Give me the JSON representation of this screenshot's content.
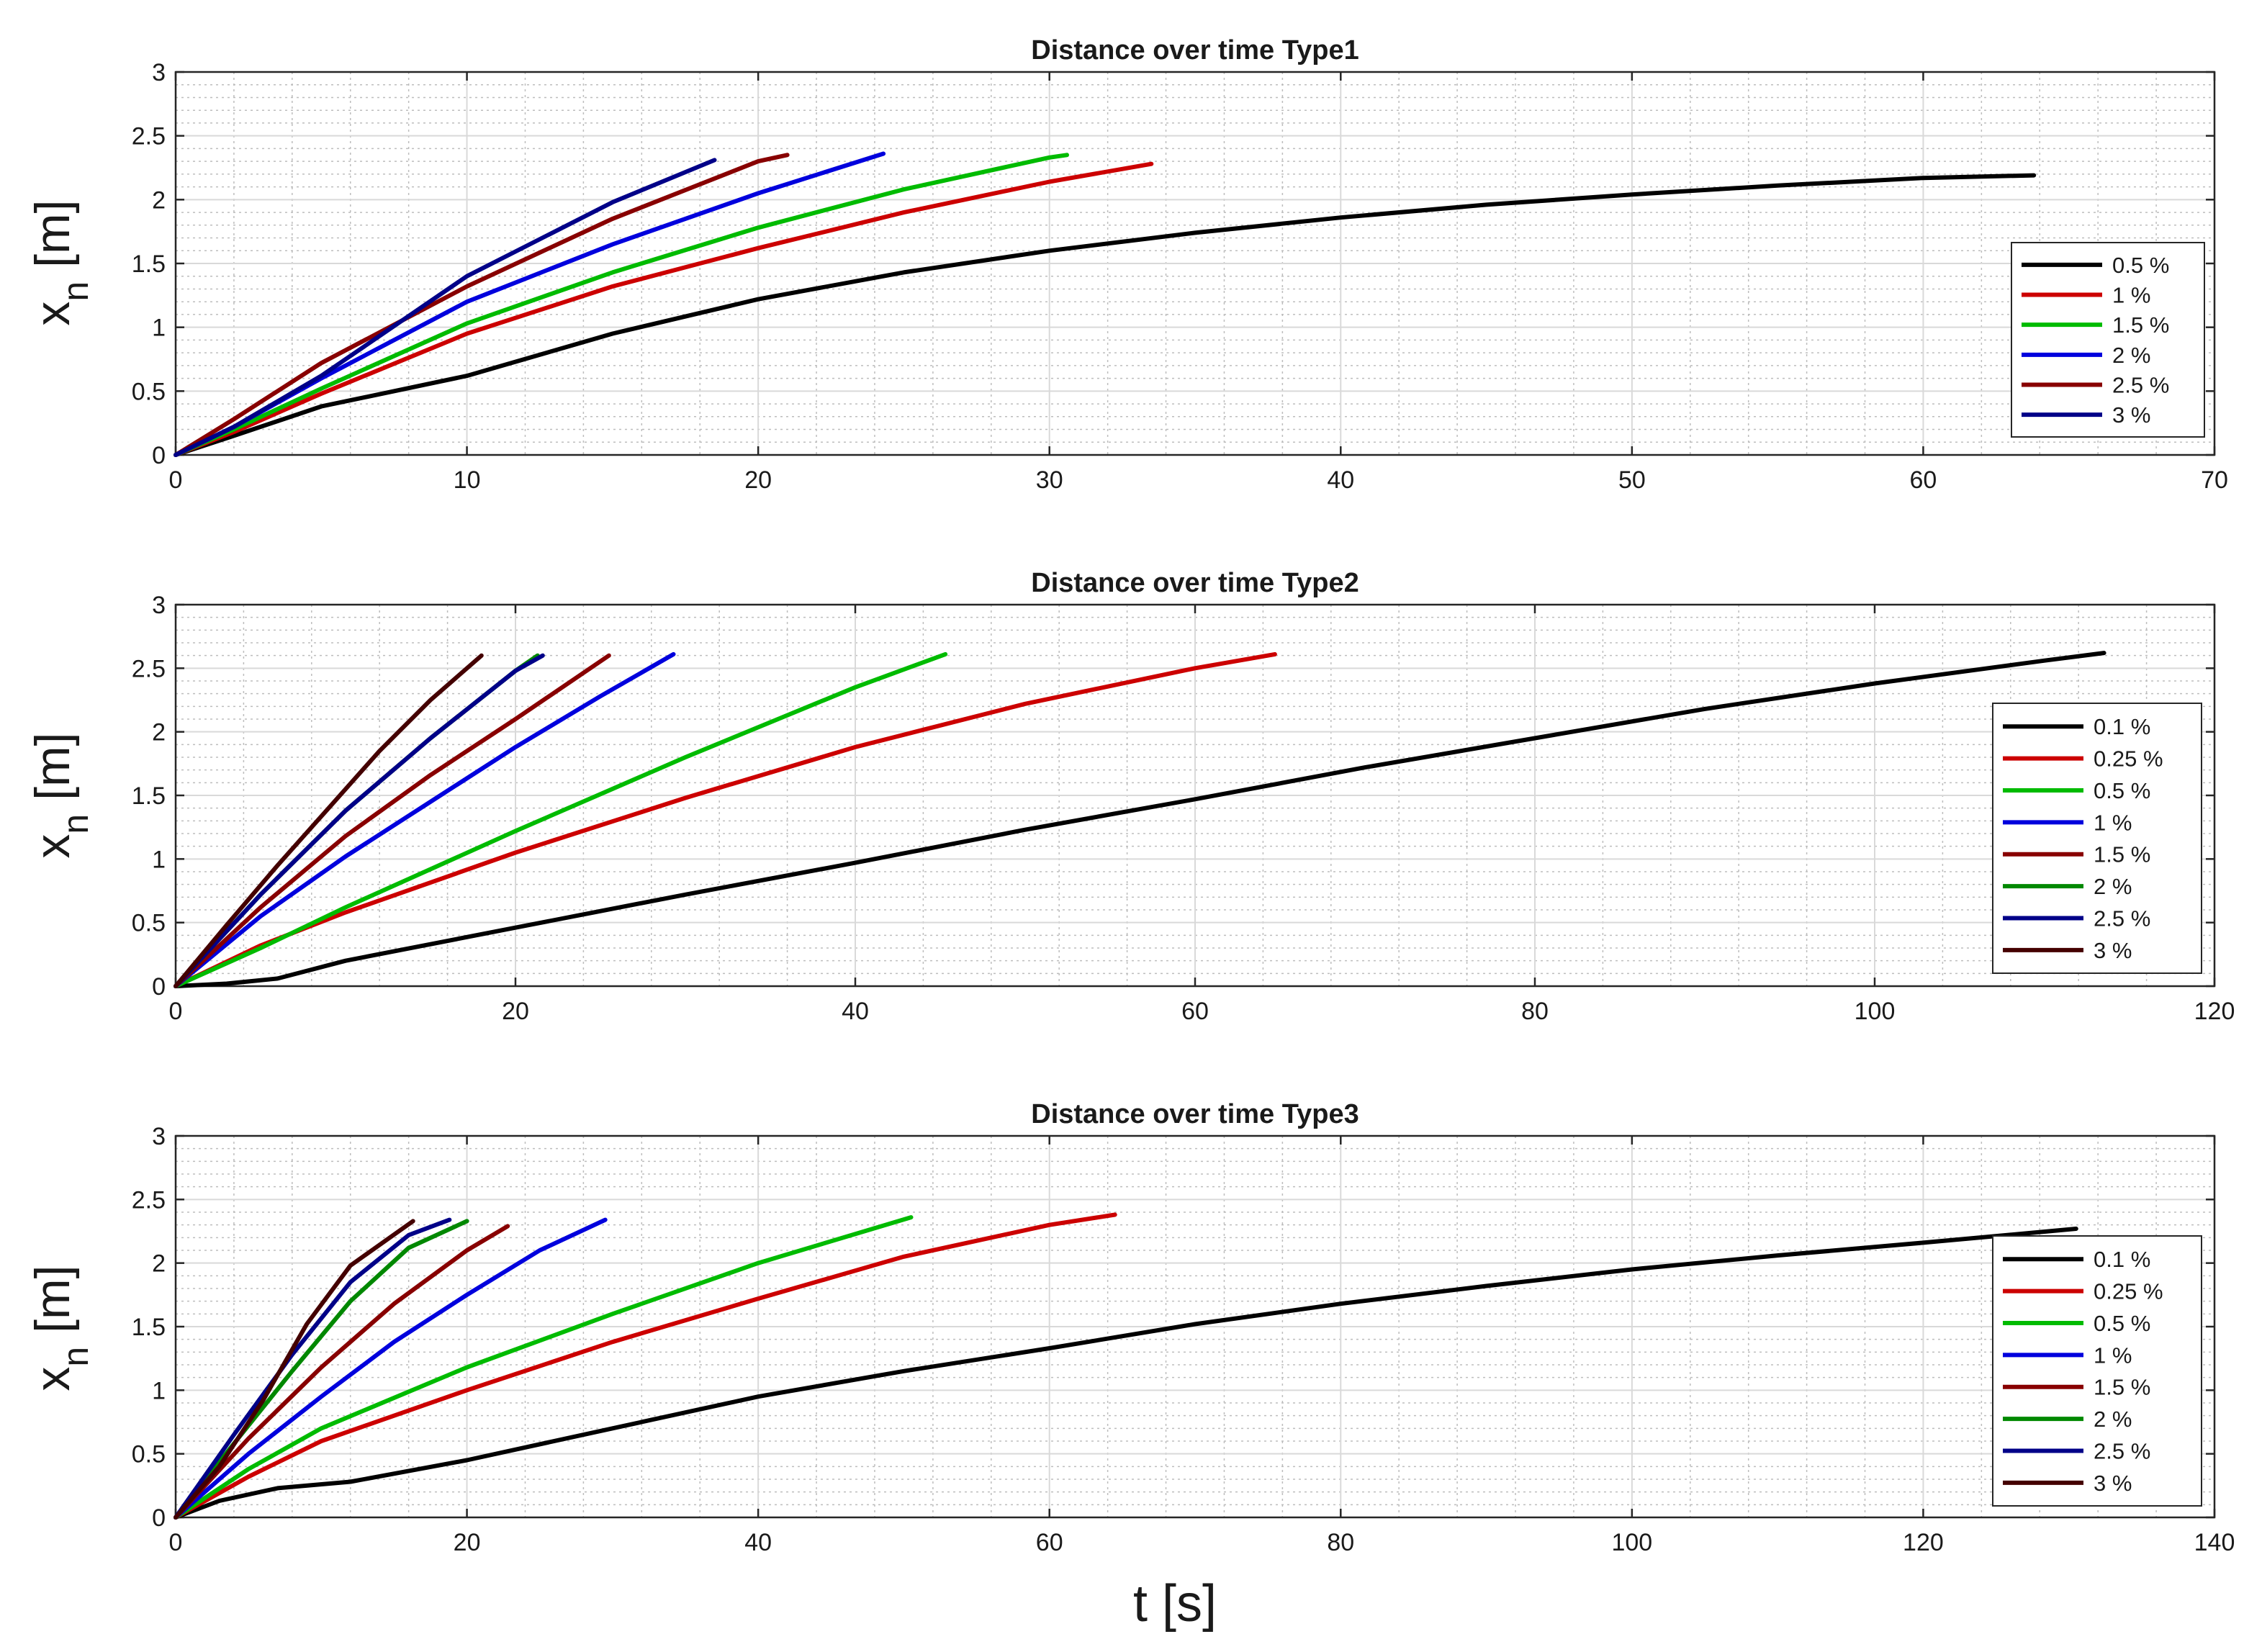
{
  "figure": {
    "xlabel": "t [s]",
    "ylabel_main": "x",
    "ylabel_sub": "n",
    "ylabel_unit": "[m]"
  },
  "chart_data": [
    {
      "type": "line",
      "title": "Distance over time Type1",
      "xlim": [
        0,
        70
      ],
      "ylim": [
        0,
        3
      ],
      "xticks": [
        0,
        10,
        20,
        30,
        40,
        50,
        60,
        70
      ],
      "yticks": [
        0,
        0.5,
        1,
        1.5,
        2,
        2.5,
        3
      ],
      "xtick_labels": [
        "0",
        "10",
        "20",
        "30",
        "40",
        "50",
        "60",
        "70"
      ],
      "ytick_labels": [
        "0",
        "0.5",
        "1",
        "1.5",
        "2",
        "2.5",
        "3"
      ],
      "grid": true,
      "legend_position": "right-middle",
      "series": [
        {
          "name": "0.5 %",
          "color": "#000000",
          "x": [
            0,
            2,
            5,
            10,
            15,
            20,
            25,
            30,
            35,
            40,
            45,
            50,
            55,
            60,
            63.8
          ],
          "y": [
            0,
            0.15,
            0.38,
            0.62,
            0.95,
            1.22,
            1.43,
            1.6,
            1.74,
            1.86,
            1.96,
            2.04,
            2.11,
            2.17,
            2.19
          ]
        },
        {
          "name": "1 %",
          "color": "#cc0000",
          "x": [
            0,
            2,
            5,
            10,
            15,
            20,
            25,
            30,
            33.5
          ],
          "y": [
            0,
            0.18,
            0.48,
            0.95,
            1.32,
            1.62,
            1.9,
            2.14,
            2.28
          ]
        },
        {
          "name": "1.5 %",
          "color": "#00bb00",
          "x": [
            0,
            2,
            5,
            10,
            15,
            20,
            25,
            30,
            30.6
          ],
          "y": [
            0,
            0.2,
            0.52,
            1.03,
            1.43,
            1.78,
            2.08,
            2.33,
            2.35
          ]
        },
        {
          "name": "2 %",
          "color": "#0000dd",
          "x": [
            0,
            2,
            5,
            10,
            15,
            20,
            24.3
          ],
          "y": [
            0,
            0.22,
            0.6,
            1.2,
            1.65,
            2.05,
            2.36
          ]
        },
        {
          "name": "2.5 %",
          "color": "#880000",
          "x": [
            0,
            2,
            5,
            10,
            15,
            20,
            21
          ],
          "y": [
            0,
            0.28,
            0.72,
            1.32,
            1.85,
            2.3,
            2.35
          ]
        },
        {
          "name": "3 %",
          "color": "#000088",
          "x": [
            0,
            2,
            5,
            10,
            15,
            18.5
          ],
          "y": [
            0,
            0.22,
            0.62,
            1.4,
            1.98,
            2.31
          ]
        }
      ]
    },
    {
      "type": "line",
      "title": "Distance over time Type2",
      "xlim": [
        0,
        120
      ],
      "ylim": [
        0,
        3
      ],
      "xticks": [
        0,
        20,
        40,
        60,
        80,
        100,
        120
      ],
      "yticks": [
        0,
        0.5,
        1,
        1.5,
        2,
        2.5,
        3
      ],
      "xtick_labels": [
        "0",
        "20",
        "40",
        "60",
        "80",
        "100",
        "120"
      ],
      "ytick_labels": [
        "0",
        "0.5",
        "1",
        "1.5",
        "2",
        "2.5",
        "3"
      ],
      "grid": true,
      "legend_position": "right-middle",
      "series": [
        {
          "name": "0.1 %",
          "color": "#000000",
          "x": [
            0,
            3,
            6,
            10,
            20,
            30,
            40,
            50,
            60,
            70,
            80,
            90,
            100,
            110,
            113.5
          ],
          "y": [
            0,
            0.02,
            0.06,
            0.2,
            0.46,
            0.72,
            0.97,
            1.23,
            1.47,
            1.72,
            1.95,
            2.18,
            2.38,
            2.56,
            2.62
          ]
        },
        {
          "name": "0.25 %",
          "color": "#cc0000",
          "x": [
            0,
            5,
            10,
            20,
            30,
            40,
            50,
            60,
            64.7
          ],
          "y": [
            0,
            0.32,
            0.58,
            1.05,
            1.48,
            1.88,
            2.22,
            2.5,
            2.61
          ]
        },
        {
          "name": "0.5 %",
          "color": "#00bb00",
          "x": [
            0,
            5,
            10,
            20,
            30,
            40,
            45.3
          ],
          "y": [
            0,
            0.3,
            0.62,
            1.22,
            1.8,
            2.35,
            2.61
          ]
        },
        {
          "name": "1 %",
          "color": "#0000dd",
          "x": [
            0,
            5,
            10,
            15,
            20,
            25,
            29.3
          ],
          "y": [
            0,
            0.55,
            1.02,
            1.45,
            1.88,
            2.28,
            2.61
          ]
        },
        {
          "name": "1.5 %",
          "color": "#880000",
          "x": [
            0,
            5,
            10,
            15,
            20,
            25.5
          ],
          "y": [
            0,
            0.62,
            1.18,
            1.66,
            2.1,
            2.6
          ]
        },
        {
          "name": "2 %",
          "color": "#008800",
          "x": [
            0,
            5,
            10,
            15,
            20,
            21.3
          ],
          "y": [
            0,
            0.72,
            1.38,
            1.95,
            2.48,
            2.6
          ]
        },
        {
          "name": "2.5 %",
          "color": "#000088",
          "x": [
            0,
            5,
            10,
            15,
            20,
            21.6
          ],
          "y": [
            0,
            0.72,
            1.38,
            1.95,
            2.48,
            2.6
          ]
        },
        {
          "name": "3 %",
          "color": "#440000",
          "x": [
            0,
            3,
            6,
            9,
            12,
            15,
            18
          ],
          "y": [
            0,
            0.48,
            0.95,
            1.4,
            1.85,
            2.25,
            2.6
          ]
        }
      ]
    },
    {
      "type": "line",
      "title": "Distance over time Type3",
      "xlim": [
        0,
        140
      ],
      "ylim": [
        0,
        3
      ],
      "xticks": [
        0,
        20,
        40,
        60,
        80,
        100,
        120,
        140
      ],
      "yticks": [
        0,
        0.5,
        1,
        1.5,
        2,
        2.5,
        3
      ],
      "xtick_labels": [
        "0",
        "20",
        "40",
        "60",
        "80",
        "100",
        "120",
        "140"
      ],
      "ytick_labels": [
        "0",
        "0.5",
        "1",
        "1.5",
        "2",
        "2.5",
        "3"
      ],
      "grid": true,
      "legend_position": "right-middle",
      "series": [
        {
          "name": "0.1 %",
          "color": "#000000",
          "x": [
            0,
            3,
            7,
            12,
            20,
            30,
            40,
            50,
            60,
            70,
            80,
            90,
            100,
            110,
            120,
            130.5
          ],
          "y": [
            0,
            0.13,
            0.23,
            0.28,
            0.45,
            0.7,
            0.95,
            1.15,
            1.33,
            1.52,
            1.68,
            1.82,
            1.95,
            2.06,
            2.16,
            2.27
          ]
        },
        {
          "name": "0.25 %",
          "color": "#cc0000",
          "x": [
            0,
            5,
            10,
            20,
            30,
            40,
            50,
            60,
            64.5
          ],
          "y": [
            0,
            0.32,
            0.6,
            1.0,
            1.38,
            1.72,
            2.05,
            2.3,
            2.38
          ]
        },
        {
          "name": "0.5 %",
          "color": "#00bb00",
          "x": [
            0,
            5,
            10,
            20,
            30,
            40,
            50.5
          ],
          "y": [
            0,
            0.38,
            0.7,
            1.18,
            1.6,
            2.0,
            2.36
          ]
        },
        {
          "name": "1 %",
          "color": "#0000dd",
          "x": [
            0,
            5,
            10,
            15,
            20,
            25,
            29.5
          ],
          "y": [
            0,
            0.5,
            0.95,
            1.38,
            1.75,
            2.1,
            2.34
          ]
        },
        {
          "name": "1.5 %",
          "color": "#880000",
          "x": [
            0,
            5,
            10,
            15,
            20,
            22.8
          ],
          "y": [
            0,
            0.62,
            1.18,
            1.68,
            2.1,
            2.29
          ]
        },
        {
          "name": "2 %",
          "color": "#008800",
          "x": [
            0,
            4,
            8,
            12,
            16,
            20
          ],
          "y": [
            0,
            0.58,
            1.15,
            1.7,
            2.12,
            2.33
          ]
        },
        {
          "name": "2.5 %",
          "color": "#000088",
          "x": [
            0,
            4,
            8,
            12,
            16,
            18.8
          ],
          "y": [
            0,
            0.65,
            1.28,
            1.85,
            2.22,
            2.34
          ]
        },
        {
          "name": "3 %",
          "color": "#440000",
          "x": [
            0,
            3,
            6,
            9,
            12,
            16.3
          ],
          "y": [
            0,
            0.4,
            0.92,
            1.52,
            1.98,
            2.33
          ]
        }
      ]
    }
  ]
}
